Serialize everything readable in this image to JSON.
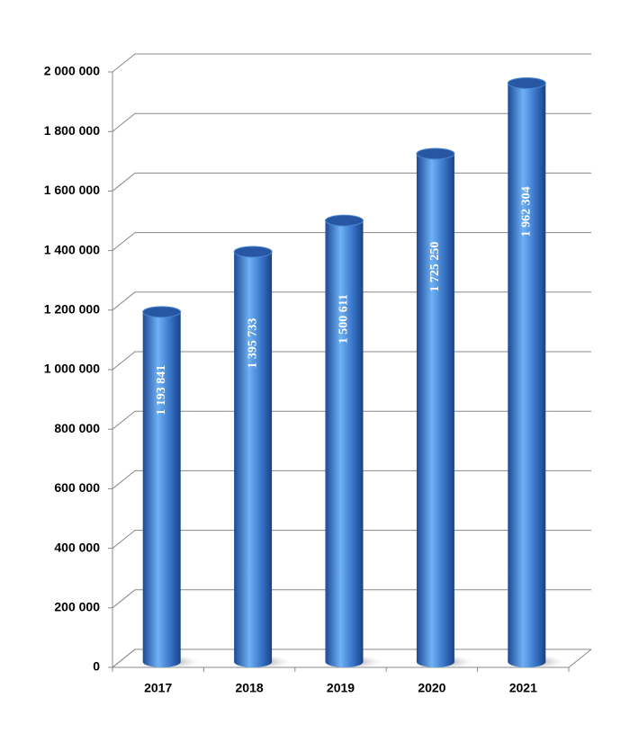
{
  "chart_data": {
    "type": "bar",
    "categories": [
      "2017",
      "2018",
      "2019",
      "2020",
      "2021"
    ],
    "values": [
      1193841,
      1395733,
      1500611,
      1725250,
      1962304
    ],
    "value_labels": [
      "1 193 841",
      "1 395 733",
      "1 500 611",
      "1 725 250",
      "1 962 304"
    ],
    "color": "#3c78cc",
    "ylim": [
      0,
      2000000
    ],
    "yticks": [
      0,
      {
        "value": 200000,
        "label": "200 000"
      },
      {
        "value": 400000,
        "label": "400 000"
      },
      {
        "value": 600000,
        "label": "600 000"
      },
      {
        "value": 800000,
        "label": "800 000"
      },
      {
        "value": 1000000,
        "label": "1 000 000"
      },
      {
        "value": 1200000,
        "label": "1 200 000"
      },
      {
        "value": 1400000,
        "label": "1 400 000"
      },
      {
        "value": 1600000,
        "label": "1 600 000"
      },
      {
        "value": 1800000,
        "label": "1 800 000"
      },
      {
        "value": 2000000,
        "label": "2 000 000"
      }
    ],
    "grid": true
  }
}
